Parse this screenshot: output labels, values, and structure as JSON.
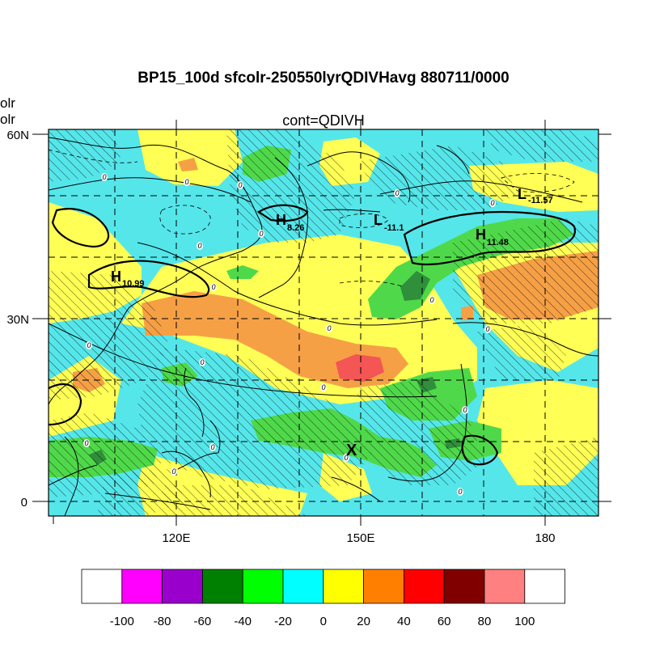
{
  "title": "BP15_100d sfcolr-250550lyrQDIVHavg  880711/0000",
  "subtitle": "cont=QDIVH",
  "left_labels": [
    "olr",
    "olr"
  ],
  "lat_labels": [
    "60N",
    "30N",
    "0"
  ],
  "lon_labels": [
    "120E",
    "150E",
    "180"
  ],
  "centers": [
    {
      "sym": "H",
      "val": "8.26"
    },
    {
      "sym": "L",
      "val": "-11.1"
    },
    {
      "sym": "L",
      "val": "-11.57"
    },
    {
      "sym": "H",
      "val": "11.48"
    },
    {
      "sym": "H",
      "val": "10.99"
    }
  ],
  "marker": "X",
  "contour_label": "0",
  "colorbar": {
    "colors": [
      "#ffffff",
      "#ff00ff",
      "#9900cc",
      "#008000",
      "#00ff00",
      "#00ffff",
      "#ffff00",
      "#ff8000",
      "#ff0000",
      "#800000",
      "#ff8080",
      "#ffffff"
    ],
    "labels": [
      "-100",
      "-80",
      "-60",
      "-40",
      "-20",
      "0",
      "20",
      "40",
      "60",
      "80",
      "100"
    ]
  },
  "palette": {
    "cyan": "#55e6ea",
    "yellow": "#ffff55",
    "orange": "#f6a046",
    "green": "#4fd94a",
    "red": "#f45555",
    "darkgreen": "#2f8f3a"
  }
}
